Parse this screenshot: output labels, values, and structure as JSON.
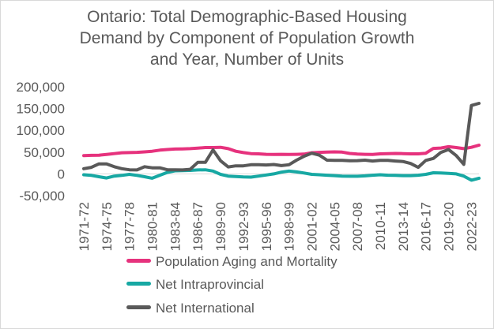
{
  "chart_data": {
    "type": "line",
    "title_lines": [
      "Ontario: Total Demographic-Based Housing",
      "Demand by Component of Population Growth",
      "and Year, Number of Units"
    ],
    "xlabel": "",
    "ylabel": "",
    "ylim": [
      -50000,
      200000
    ],
    "yticks": [
      200000,
      150000,
      100000,
      50000,
      0,
      -50000
    ],
    "ytick_labels": [
      "200,000",
      "150,000",
      "100,000",
      "50,000",
      "0",
      "-50,000"
    ],
    "grid": false,
    "legend_position": "bottom-left",
    "categories": [
      "1971-72",
      "1972-73",
      "1973-74",
      "1974-75",
      "1975-76",
      "1976-77",
      "1977-78",
      "1978-79",
      "1979-80",
      "1980-81",
      "1981-82",
      "1982-83",
      "1983-84",
      "1984-85",
      "1985-86",
      "1986-87",
      "1987-88",
      "1988-89",
      "1989-90",
      "1990-91",
      "1991-92",
      "1992-93",
      "1993-94",
      "1994-95",
      "1995-96",
      "1996-97",
      "1997-98",
      "1998-99",
      "1999-00",
      "2000-01",
      "2001-02",
      "2002-03",
      "2003-04",
      "2004-05",
      "2005-06",
      "2006-07",
      "2007-08",
      "2008-09",
      "2009-10",
      "2010-11",
      "2011-12",
      "2012-13",
      "2013-14",
      "2014-15",
      "2015-16",
      "2016-17",
      "2017-18",
      "2018-19",
      "2019-20",
      "2020-21",
      "2021-22",
      "2022-23",
      "2023-24"
    ],
    "xtick_labels": [
      "1971-72",
      "1974-75",
      "1977-78",
      "1980-81",
      "1983-84",
      "1986-87",
      "1989-90",
      "1992-93",
      "1995-96",
      "1998-99",
      "2001-02",
      "2004-05",
      "2007-08",
      "2010-11",
      "2013-14",
      "2016-17",
      "2019-20",
      "2022-23"
    ],
    "series": [
      {
        "name": "Population Aging and Mortality",
        "color": "#e6327d",
        "values": [
          42000,
          42500,
          43000,
          44500,
          46500,
          48500,
          49000,
          49500,
          50500,
          52000,
          54500,
          56000,
          57000,
          57500,
          58000,
          59000,
          60500,
          60500,
          61000,
          58000,
          52000,
          49000,
          46500,
          46000,
          45000,
          44500,
          45000,
          44500,
          45000,
          45500,
          48500,
          49500,
          50000,
          50500,
          50000,
          47000,
          45500,
          45000,
          44500,
          46000,
          46500,
          47000,
          46500,
          46000,
          46000,
          47500,
          58500,
          59500,
          62500,
          60500,
          58000,
          61000,
          66000
        ]
      },
      {
        "name": "Net Intraprovincial",
        "color": "#17a8a3",
        "values": [
          -2000,
          -3500,
          -6500,
          -9500,
          -5000,
          -3500,
          -1000,
          -3500,
          -6500,
          -10000,
          -3000,
          3500,
          7000,
          7500,
          8000,
          9000,
          9500,
          6500,
          -1000,
          -5000,
          -6000,
          -7000,
          -7500,
          -5000,
          -2500,
          0,
          4000,
          6500,
          4500,
          2000,
          -1000,
          -2000,
          -3000,
          -4000,
          -5000,
          -5500,
          -5500,
          -4500,
          -3000,
          -2000,
          -3000,
          -3500,
          -4000,
          -4000,
          -3000,
          -1000,
          2500,
          2000,
          1000,
          0,
          -5000,
          -14500,
          -10000
        ]
      },
      {
        "name": "Net International",
        "color": "#595959",
        "values": [
          12000,
          15000,
          23000,
          23000,
          16500,
          12000,
          9500,
          9000,
          16500,
          14000,
          14000,
          9500,
          9500,
          9000,
          10500,
          26500,
          26500,
          55000,
          30000,
          16000,
          18500,
          18500,
          21000,
          21000,
          20500,
          21500,
          19000,
          21000,
          31500,
          40500,
          47500,
          43000,
          31500,
          31000,
          31000,
          30000,
          30500,
          31500,
          29500,
          31000,
          31000,
          29500,
          28500,
          24000,
          15000,
          31000,
          35500,
          49500,
          56000,
          42000,
          22000,
          157000,
          162000
        ]
      }
    ]
  }
}
